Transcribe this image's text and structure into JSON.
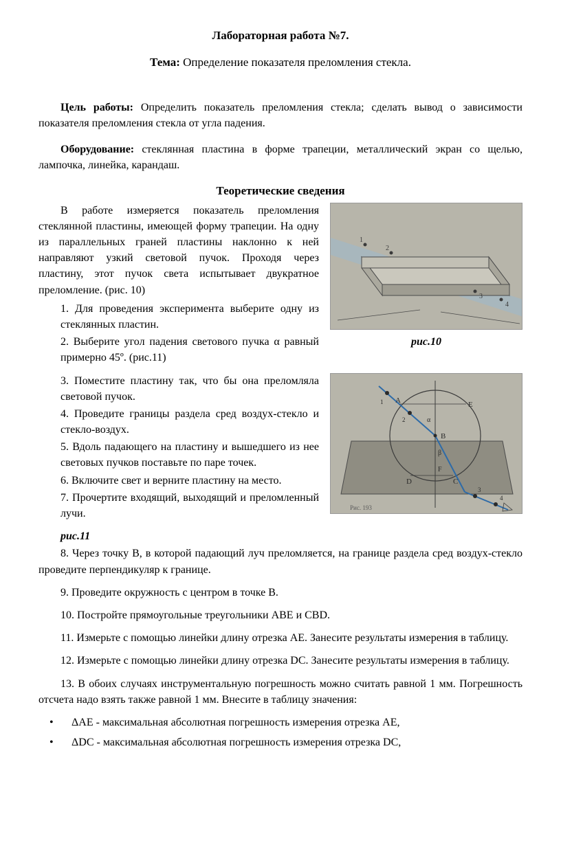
{
  "title": "Лабораторная работа  №7.",
  "topic_label": "Тема:",
  "topic_text": " Определение показателя преломления стекла.",
  "goal_label": "Цель работы:",
  "goal_text": " Определить показатель преломления стекла; сделать вывод о зависимости показателя преломления стекла от угла падения.",
  "equip_label": "Оборудование:",
  "equip_text": " стеклянная пластина в форме трапеции, металлический экран со щелью, лампочка, линейка, карандаш.",
  "theory_heading": "Теоретические сведения",
  "theory_para": "В работе измеряется показатель преломления стеклянной пластины, имеющей форму трапеции. На одну из параллельных граней пластины наклонно к ней направляют узкий световой пучок. Проходя через пластину, этот пучок света испытывает двукратное преломление. (рис. 10)",
  "steps_a": [
    "1. Для проведения эксперимента выберите одну из стеклянных пластин.",
    "2. Выберите угол падения светового пучка α равный примерно 45º.  (рис.11)"
  ],
  "steps_b": [
    "3. Поместите пластину так, что бы она преломляла световой пучок.",
    "4. Проведите границы раздела сред воздух-стекло и стекло-воздух.",
    "5. Вдоль падающего на пластину и вышедшего из нее световых пучков поставьте по паре точек.",
    "6. Включите свет и верните пластину на место.",
    "7. Прочертите входящий, выходящий и преломленный лучи."
  ],
  "fig10_caption": "рис.10",
  "fig11_caption": "рис.11",
  "steps_c": [
    "8. Через точку В, в которой падающий луч преломляется, на границе раздела сред воздух-стекло проведите перпендикуляр к границе.",
    "9. Проведите окружность с центром в точке В.",
    "10.   Постройте прямоугольные треугольники ABE и CBD.",
    "11.   Измерьте с помощью линейки длину отрезка АЕ. Занесите  результаты измерения в таблицу.",
    "12.   Измерьте с помощью линейки длину отрезка DC. Занесите результаты измерения в таблицу.",
    "13.   В обоих случаях инструментальную погрешность можно считать равной  1 мм. Погрешность отсчета надо взять также равной 1 мм. Внесите в таблицу значения:"
  ],
  "bullets": [
    "ΔАЕ - максимальная абсолютная погрешность измерения отрезка АЕ,",
    "ΔDC - максимальная абсолютная погрешность измерения отрезка DC,"
  ],
  "fig10": {
    "bg": "#b7b5aa",
    "plate_fill": "#cac8bd",
    "plate_stroke": "#4a4a4a",
    "beam": "#9fb8c8",
    "dot": "#3a3a3a",
    "labels": [
      "1",
      "2",
      "3",
      "4"
    ]
  },
  "fig11": {
    "bg": "#b7b5aa",
    "circle_stroke": "#3a3a3a",
    "line_stroke": "#3a3a3a",
    "ray_color": "#2e6ba8",
    "plate_fill": "#8f8d82",
    "dot": "#2a2a2a",
    "labels": {
      "A": "A",
      "B": "B",
      "C": "C",
      "D": "D",
      "E": "E",
      "F": "F",
      "alpha": "α",
      "beta": "β",
      "ris": "Рис. 193"
    },
    "nums": [
      "1",
      "2",
      "3",
      "4"
    ]
  }
}
